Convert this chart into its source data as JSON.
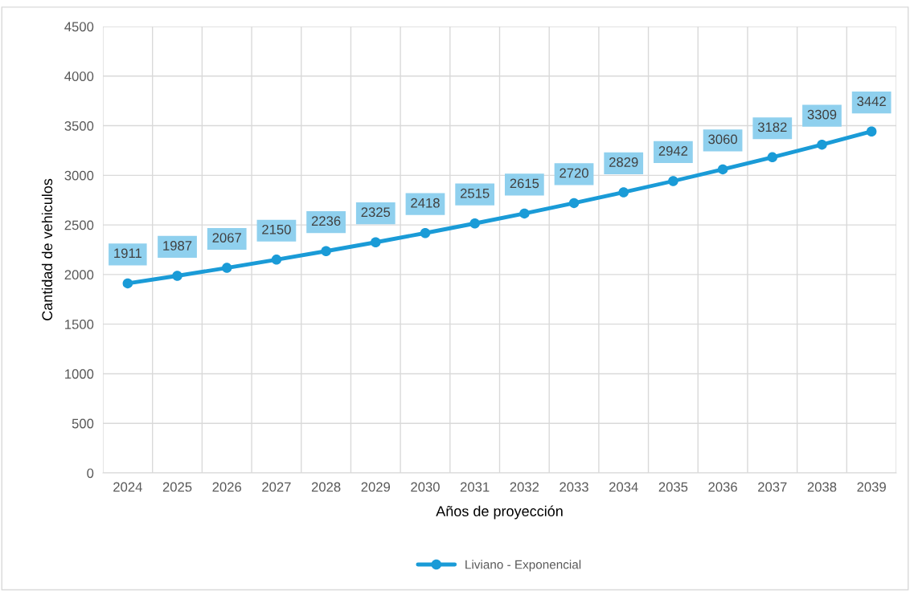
{
  "chart_data": {
    "type": "line",
    "xlabel": "Años de proyección",
    "ylabel": "Cantidad de vehiculos",
    "categories": [
      "2024",
      "2025",
      "2026",
      "2027",
      "2028",
      "2029",
      "2030",
      "2031",
      "2032",
      "2033",
      "2034",
      "2035",
      "2036",
      "2037",
      "2038",
      "2039"
    ],
    "series": [
      {
        "name": "Liviano - Exponencial",
        "color": "#1a9bd7",
        "values": [
          1911,
          1987,
          2067,
          2150,
          2236,
          2325,
          2418,
          2515,
          2615,
          2720,
          2829,
          2942,
          3060,
          3182,
          3309,
          3442
        ]
      }
    ],
    "ylim": [
      0,
      4500
    ],
    "yticks": [
      0,
      500,
      1000,
      1500,
      2000,
      2500,
      3000,
      3500,
      4000,
      4500
    ],
    "grid": true,
    "legend": "bottom",
    "marker": "circle",
    "line_style": "solid",
    "data_labels": true
  }
}
